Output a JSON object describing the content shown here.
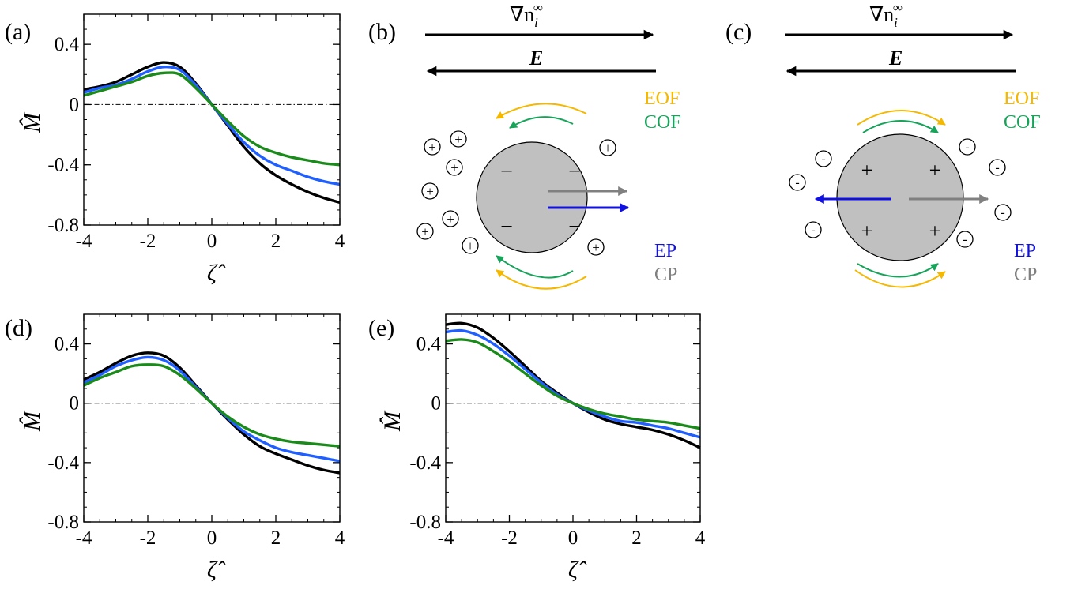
{
  "colors": {
    "black": "#000000",
    "blue": "#1f5fff",
    "green": "#1a8a1a",
    "eof": "#f5b800",
    "cof": "#17a35a",
    "ep": "#1010e0",
    "cp": "#808080",
    "sphere_fill": "#c0c0c0"
  },
  "panels": {
    "a": {
      "label": "(a)"
    },
    "b": {
      "label": "(b)",
      "grad_label": "∇n",
      "grad_sub": "i",
      "grad_sup": "∞",
      "field_label": "E",
      "eof_label": "EOF",
      "cof_label": "COF",
      "ep_label": "EP",
      "cp_label": "CP",
      "surface_sign": "−",
      "ion_sign": "+"
    },
    "c": {
      "label": "(c)",
      "grad_label": "∇n",
      "grad_sub": "i",
      "grad_sup": "∞",
      "field_label": "E",
      "eof_label": "EOF",
      "cof_label": "COF",
      "ep_label": "EP",
      "cp_label": "CP",
      "surface_sign": "+",
      "ion_sign": "-"
    },
    "d": {
      "label": "(d)"
    },
    "e": {
      "label": "(e)"
    }
  },
  "chart_data": [
    {
      "panel": "a",
      "type": "line",
      "xlabel": "ζ̂",
      "ylabel": "M̂",
      "xlim": [
        -4,
        4
      ],
      "ylim": [
        -0.8,
        0.6
      ],
      "xticks": [
        -4,
        -2,
        0,
        2,
        4
      ],
      "xtick_labels": [
        "-4",
        "-2",
        "0",
        "2",
        "4"
      ],
      "yticks": [
        -0.8,
        -0.4,
        0,
        0.4
      ],
      "ytick_labels": [
        "-0.8",
        "-0.4",
        "0",
        "0.4"
      ],
      "reference_line": 0,
      "x": [
        -4,
        -3.5,
        -3,
        -2.5,
        -2,
        -1.5,
        -1,
        -0.5,
        0,
        0.5,
        1,
        1.5,
        2,
        2.5,
        3,
        3.5,
        4
      ],
      "series": [
        {
          "color": "black",
          "values": [
            0.1,
            0.12,
            0.15,
            0.2,
            0.25,
            0.28,
            0.25,
            0.14,
            0.0,
            -0.14,
            -0.28,
            -0.39,
            -0.47,
            -0.53,
            -0.58,
            -0.62,
            -0.65
          ]
        },
        {
          "color": "blue",
          "values": [
            0.08,
            0.11,
            0.13,
            0.17,
            0.22,
            0.25,
            0.23,
            0.13,
            0.0,
            -0.13,
            -0.25,
            -0.34,
            -0.4,
            -0.44,
            -0.48,
            -0.51,
            -0.53
          ]
        },
        {
          "color": "green",
          "values": [
            0.06,
            0.09,
            0.12,
            0.15,
            0.19,
            0.21,
            0.2,
            0.11,
            0.0,
            -0.11,
            -0.21,
            -0.28,
            -0.32,
            -0.35,
            -0.37,
            -0.39,
            -0.4
          ]
        }
      ]
    },
    {
      "panel": "d",
      "type": "line",
      "xlabel": "ζ̂",
      "ylabel": "M̂",
      "xlim": [
        -4,
        4
      ],
      "ylim": [
        -0.8,
        0.6
      ],
      "xticks": [
        -4,
        -2,
        0,
        2,
        4
      ],
      "xtick_labels": [
        "-4",
        "-2",
        "0",
        "2",
        "4"
      ],
      "yticks": [
        -0.8,
        -0.4,
        0,
        0.4
      ],
      "ytick_labels": [
        "-0.8",
        "-0.4",
        "0",
        "0.4"
      ],
      "reference_line": 0,
      "x": [
        -4,
        -3.5,
        -3,
        -2.5,
        -2,
        -1.5,
        -1,
        -0.5,
        0,
        0.5,
        1,
        1.5,
        2,
        2.5,
        3,
        3.5,
        4
      ],
      "series": [
        {
          "color": "black",
          "values": [
            0.16,
            0.21,
            0.27,
            0.32,
            0.34,
            0.32,
            0.24,
            0.12,
            0.0,
            -0.11,
            -0.21,
            -0.29,
            -0.34,
            -0.38,
            -0.42,
            -0.45,
            -0.47
          ]
        },
        {
          "color": "blue",
          "values": [
            0.14,
            0.19,
            0.25,
            0.29,
            0.31,
            0.29,
            0.22,
            0.11,
            0.0,
            -0.1,
            -0.19,
            -0.25,
            -0.3,
            -0.33,
            -0.35,
            -0.37,
            -0.39
          ]
        },
        {
          "color": "green",
          "values": [
            0.12,
            0.17,
            0.21,
            0.25,
            0.26,
            0.25,
            0.19,
            0.1,
            0.0,
            -0.09,
            -0.16,
            -0.21,
            -0.24,
            -0.26,
            -0.27,
            -0.28,
            -0.29
          ]
        }
      ]
    },
    {
      "panel": "e",
      "type": "line",
      "xlabel": "ζ̂",
      "ylabel": "M̂",
      "xlim": [
        -4,
        4
      ],
      "ylim": [
        -0.8,
        0.6
      ],
      "xticks": [
        -4,
        -2,
        0,
        2,
        4
      ],
      "xtick_labels": [
        "-4",
        "-2",
        "0",
        "2",
        "4"
      ],
      "yticks": [
        -0.8,
        -0.4,
        0,
        0.4
      ],
      "ytick_labels": [
        "-0.8",
        "-0.4",
        "0",
        "0.4"
      ],
      "reference_line": 0,
      "x": [
        -4,
        -3.5,
        -3,
        -2.5,
        -2,
        -1.5,
        -1,
        -0.5,
        0,
        0.5,
        1,
        1.5,
        2,
        2.5,
        3,
        3.5,
        4
      ],
      "series": [
        {
          "color": "black",
          "values": [
            0.53,
            0.54,
            0.51,
            0.44,
            0.35,
            0.25,
            0.15,
            0.07,
            0.0,
            -0.06,
            -0.11,
            -0.14,
            -0.16,
            -0.18,
            -0.21,
            -0.25,
            -0.3
          ]
        },
        {
          "color": "blue",
          "values": [
            0.48,
            0.49,
            0.46,
            0.4,
            0.32,
            0.23,
            0.14,
            0.06,
            0.0,
            -0.05,
            -0.09,
            -0.12,
            -0.13,
            -0.15,
            -0.17,
            -0.2,
            -0.23
          ]
        },
        {
          "color": "green",
          "values": [
            0.42,
            0.43,
            0.41,
            0.35,
            0.28,
            0.2,
            0.12,
            0.05,
            0.0,
            -0.04,
            -0.07,
            -0.09,
            -0.11,
            -0.12,
            -0.13,
            -0.15,
            -0.17
          ]
        }
      ]
    }
  ]
}
